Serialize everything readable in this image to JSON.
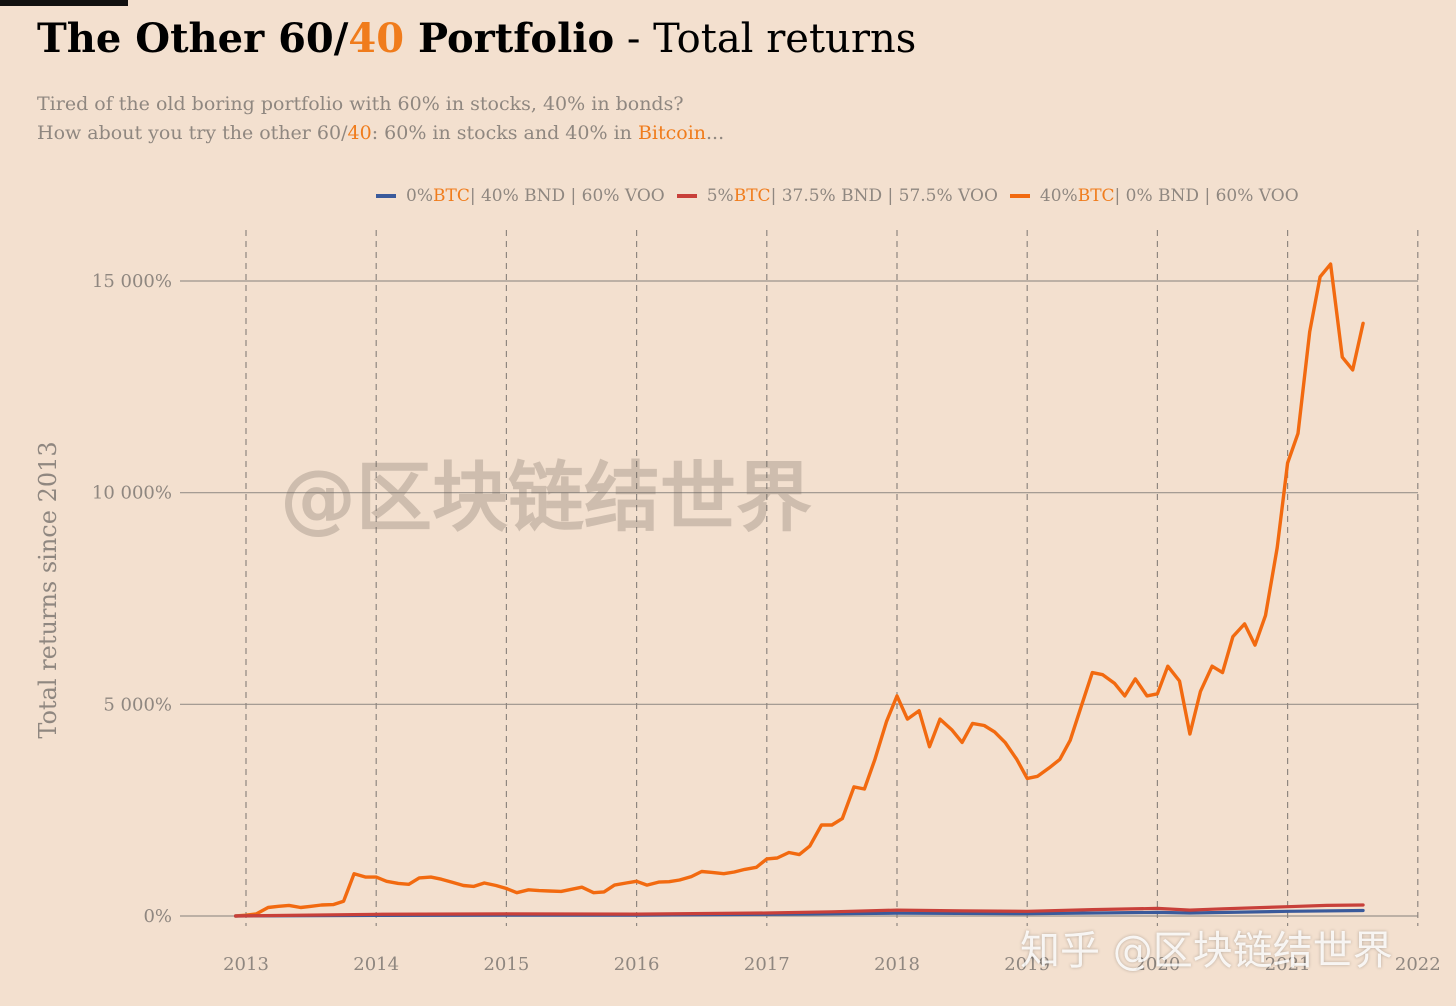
{
  "header": {
    "title_bold_a": "The Other 60/",
    "title_bold_hl": "40",
    "title_bold_b": " Portfolio",
    "title_rest": " - Total returns",
    "subtitle_line1": "Tired of the old boring portfolio with 60% in stocks, 40% in bonds?",
    "subtitle_line2_a": "How about you try the other 60/",
    "subtitle_line2_hl1": "40",
    "subtitle_line2_b": ": 60% in stocks and 40% in ",
    "subtitle_line2_hl2": "Bitcoin",
    "subtitle_line2_c": "..."
  },
  "legend": [
    {
      "pre": "0% ",
      "btc": "BTC",
      "post": " | 40% BND | 60% VOO",
      "color": "#3a5a9b"
    },
    {
      "pre": "5% ",
      "btc": "BTC",
      "post": " | 37.5% BND | 57.5% VOO",
      "color": "#c8403a"
    },
    {
      "pre": "40% ",
      "btc": "BTC",
      "post": " | 0% BND | 60% VOO",
      "color": "#f26a10"
    }
  ],
  "watermarks": {
    "center": "@区块链结世界",
    "corner": "知乎 @区块链结世界"
  },
  "chart_data": {
    "type": "line",
    "ylabel": "Total returns since 2013",
    "xlim": [
      2013,
      2022
    ],
    "ylim": [
      0,
      15000
    ],
    "y_ticks": [
      0,
      5000,
      10000,
      15000
    ],
    "y_tick_labels": [
      "0%",
      "5 000%",
      "10 000%",
      "15 000%"
    ],
    "x_ticks": [
      2013,
      2014,
      2015,
      2016,
      2017,
      2018,
      2019,
      2020,
      2021,
      2022
    ],
    "x_tick_labels": [
      "2013",
      "2014",
      "2015",
      "2016",
      "2017",
      "2018",
      "2019",
      "2020",
      "2021",
      "2022"
    ],
    "grid": {
      "horizontal": true,
      "vertical_dashed": true
    },
    "legend_position": "top",
    "series": [
      {
        "name": "0% BTC | 40% BND | 60% VOO",
        "color": "#3a5a9b",
        "x": [
          2012.92,
          2014.0,
          2015.0,
          2016.0,
          2017.0,
          2018.0,
          2019.0,
          2020.0,
          2020.25,
          2021.0,
          2021.58
        ],
        "values": [
          0,
          15,
          22,
          20,
          40,
          65,
          55,
          85,
          70,
          110,
          130
        ]
      },
      {
        "name": "5% BTC | 37.5% BND | 57.5% VOO",
        "color": "#c8403a",
        "x": [
          2012.92,
          2014.0,
          2015.0,
          2016.0,
          2017.0,
          2017.5,
          2018.0,
          2018.5,
          2019.0,
          2019.5,
          2020.0,
          2020.25,
          2020.5,
          2021.0,
          2021.3,
          2021.58
        ],
        "values": [
          0,
          40,
          50,
          45,
          70,
          100,
          140,
          120,
          110,
          150,
          180,
          140,
          170,
          220,
          250,
          260
        ]
      },
      {
        "name": "40% BTC | 0% BND | 60% VOO",
        "color": "#f26a10",
        "x": [
          2012.92,
          2013.0,
          2013.08,
          2013.17,
          2013.25,
          2013.33,
          2013.42,
          2013.5,
          2013.58,
          2013.67,
          2013.75,
          2013.83,
          2013.92,
          2014.0,
          2014.08,
          2014.17,
          2014.25,
          2014.33,
          2014.42,
          2014.5,
          2014.58,
          2014.67,
          2014.75,
          2014.83,
          2014.92,
          2015.0,
          2015.08,
          2015.17,
          2015.25,
          2015.33,
          2015.42,
          2015.5,
          2015.58,
          2015.67,
          2015.75,
          2015.83,
          2015.92,
          2016.0,
          2016.08,
          2016.17,
          2016.25,
          2016.33,
          2016.42,
          2016.5,
          2016.58,
          2016.67,
          2016.75,
          2016.83,
          2016.92,
          2017.0,
          2017.08,
          2017.17,
          2017.25,
          2017.33,
          2017.42,
          2017.5,
          2017.58,
          2017.67,
          2017.75,
          2017.83,
          2017.92,
          2018.0,
          2018.08,
          2018.17,
          2018.25,
          2018.33,
          2018.42,
          2018.5,
          2018.58,
          2018.67,
          2018.75,
          2018.83,
          2018.92,
          2019.0,
          2019.08,
          2019.17,
          2019.25,
          2019.33,
          2019.42,
          2019.5,
          2019.58,
          2019.67,
          2019.75,
          2019.83,
          2019.92,
          2020.0,
          2020.08,
          2020.17,
          2020.25,
          2020.33,
          2020.42,
          2020.5,
          2020.58,
          2020.67,
          2020.75,
          2020.83,
          2020.92,
          2021.0,
          2021.08,
          2021.17,
          2021.25,
          2021.33,
          2021.42,
          2021.5,
          2021.58
        ],
        "values": [
          0,
          20,
          50,
          200,
          230,
          250,
          200,
          230,
          260,
          270,
          350,
          1000,
          920,
          920,
          820,
          770,
          750,
          900,
          920,
          870,
          800,
          720,
          700,
          780,
          720,
          650,
          550,
          620,
          600,
          590,
          580,
          630,
          680,
          550,
          570,
          730,
          780,
          820,
          730,
          800,
          810,
          850,
          930,
          1050,
          1030,
          1000,
          1040,
          1100,
          1150,
          1350,
          1370,
          1500,
          1450,
          1650,
          2150,
          2150,
          2300,
          3050,
          3000,
          3700,
          4600,
          5200,
          4650,
          4850,
          4000,
          4650,
          4400,
          4100,
          4550,
          4500,
          4350,
          4100,
          3700,
          3250,
          3300,
          3500,
          3700,
          4150,
          5000,
          5750,
          5700,
          5500,
          5200,
          5600,
          5200,
          5250,
          5900,
          5550,
          4300,
          5300,
          5900,
          5750,
          6600,
          6900,
          6400,
          7100,
          8700,
          10700,
          11400,
          13800,
          15100,
          15400,
          13200,
          12900,
          14000
        ]
      }
    ]
  }
}
